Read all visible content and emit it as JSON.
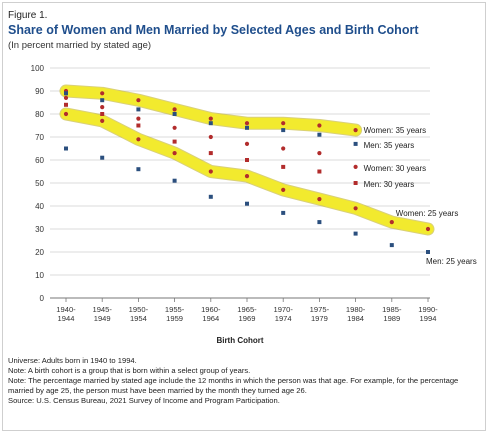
{
  "figure_label": "Figure 1.",
  "title": "Share of Women and Men Married by Selected Ages and Birth Cohort",
  "subtitle": "(In percent married by stated age)",
  "notes": [
    "Universe: Adults born in 1940 to 1994.",
    "Note: A birth cohort is a group that is born within a select group of years.",
    "Note: The percentage married by stated age include the 12 months in which the person was that age. For example, for the percentage married by age 25, the person must have been married by the month they turned age 26.",
    "Source: U.S. Census Bureau, 2021 Survey of Income and Program Participation."
  ],
  "colors": {
    "title": "#1f4e8c",
    "women": "#b22c2c",
    "men": "#2b4f7e",
    "highlight": "#f2ea2e",
    "grid": "#cfcfcf"
  },
  "chart_data": {
    "type": "scatter",
    "xlabel": "Birth Cohort",
    "ylabel": "",
    "ylim": [
      0,
      100
    ],
    "yticks": [
      0,
      10,
      20,
      30,
      40,
      50,
      60,
      70,
      80,
      90,
      100
    ],
    "categories": [
      [
        "1940-",
        "1944"
      ],
      [
        "1945-",
        "1949"
      ],
      [
        "1950-",
        "1954"
      ],
      [
        "1955-",
        "1959"
      ],
      [
        "1960-",
        "1964"
      ],
      [
        "1965-",
        "1969"
      ],
      [
        "1970-",
        "1974"
      ],
      [
        "1975-",
        "1979"
      ],
      [
        "1980-",
        "1984"
      ],
      [
        "1985-",
        "1989"
      ],
      [
        "1990-",
        "1994"
      ]
    ],
    "grid": "horizontal",
    "series": [
      {
        "name": "Women: 35 years",
        "values": [
          90,
          89,
          86,
          82,
          78,
          76,
          76,
          75,
          73,
          null,
          null
        ],
        "color": "women",
        "marker": "circle",
        "highlight": true
      },
      {
        "name": "Men: 35 years",
        "values": [
          89,
          86,
          82,
          80,
          76,
          74,
          73,
          71,
          67,
          null,
          null
        ],
        "color": "men",
        "marker": "square"
      },
      {
        "name": "Women: 30 years",
        "values": [
          87,
          83,
          78,
          74,
          70,
          67,
          65,
          63,
          57,
          null,
          null
        ],
        "color": "women",
        "marker": "circle"
      },
      {
        "name": "Men: 30 years",
        "values": [
          84,
          80,
          75,
          68,
          63,
          60,
          57,
          55,
          50,
          null,
          null
        ],
        "color": "women",
        "marker": "square"
      },
      {
        "name": "Women: 25 years",
        "values": [
          80,
          77,
          69,
          63,
          55,
          53,
          47,
          43,
          39,
          33,
          30
        ],
        "color": "women",
        "marker": "circle",
        "highlight": true
      },
      {
        "name": "Men: 25 years",
        "values": [
          65,
          61,
          56,
          51,
          44,
          41,
          37,
          33,
          28,
          23,
          20
        ],
        "color": "men",
        "marker": "square"
      }
    ],
    "labels": [
      {
        "text": "Women: 35 years",
        "series": 0,
        "index": 8
      },
      {
        "text": "Men: 35 years",
        "series": 1,
        "index": 8
      },
      {
        "text": "Women: 30 years",
        "series": 2,
        "index": 8
      },
      {
        "text": "Men: 30 years",
        "series": 3,
        "index": 8
      },
      {
        "text": "Women: 25 years",
        "series": 4,
        "index": 9
      },
      {
        "text": "Men: 25 years",
        "series": 5,
        "index": 10
      }
    ]
  }
}
